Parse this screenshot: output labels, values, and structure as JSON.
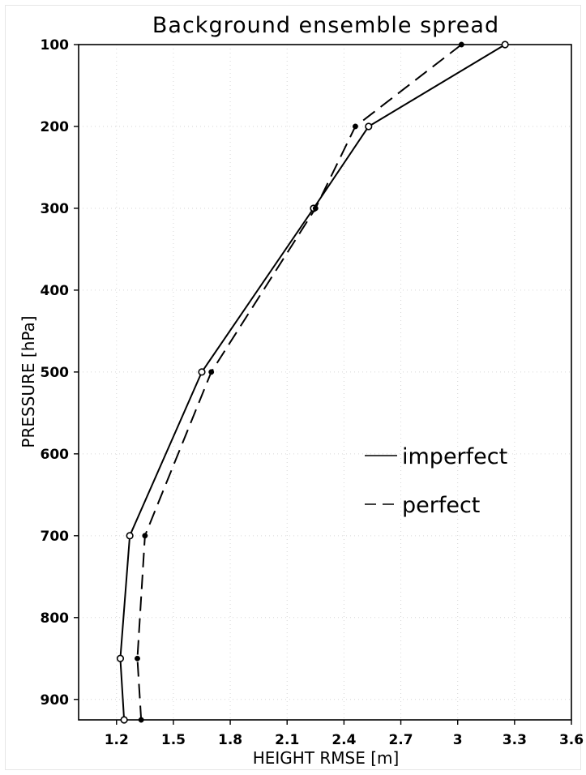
{
  "chart_data": {
    "type": "line",
    "title": "Background ensemble spread",
    "xlabel": "HEIGHT RMSE [m]",
    "ylabel": "PRESSURE [hPa]",
    "xlim": [
      1.0,
      3.6
    ],
    "ylim": [
      925,
      100
    ],
    "y_scale": "linear, inverted",
    "grid": true,
    "legend_position": "center-right",
    "x_ticks": [
      "1.2",
      "1.5",
      "1.8",
      "2.1",
      "2.4",
      "2.7",
      "3",
      "3.3",
      "3.6"
    ],
    "y_ticks": [
      "100",
      "200",
      "300",
      "400",
      "500",
      "600",
      "700",
      "800",
      "900"
    ],
    "series": [
      {
        "name": "imperfect",
        "line_style": "solid",
        "marker": "open-circle",
        "points": [
          {
            "x": 3.25,
            "y": 100
          },
          {
            "x": 2.53,
            "y": 200
          },
          {
            "x": 2.24,
            "y": 300
          },
          {
            "x": 1.65,
            "y": 500
          },
          {
            "x": 1.27,
            "y": 700
          },
          {
            "x": 1.22,
            "y": 850
          },
          {
            "x": 1.24,
            "y": 925
          }
        ]
      },
      {
        "name": "perfect",
        "line_style": "dashed",
        "marker": "filled-dot",
        "points": [
          {
            "x": 3.02,
            "y": 100
          },
          {
            "x": 2.46,
            "y": 200
          },
          {
            "x": 2.25,
            "y": 300
          },
          {
            "x": 1.7,
            "y": 500
          },
          {
            "x": 1.35,
            "y": 700
          },
          {
            "x": 1.31,
            "y": 850
          },
          {
            "x": 1.33,
            "y": 925
          }
        ]
      }
    ]
  }
}
